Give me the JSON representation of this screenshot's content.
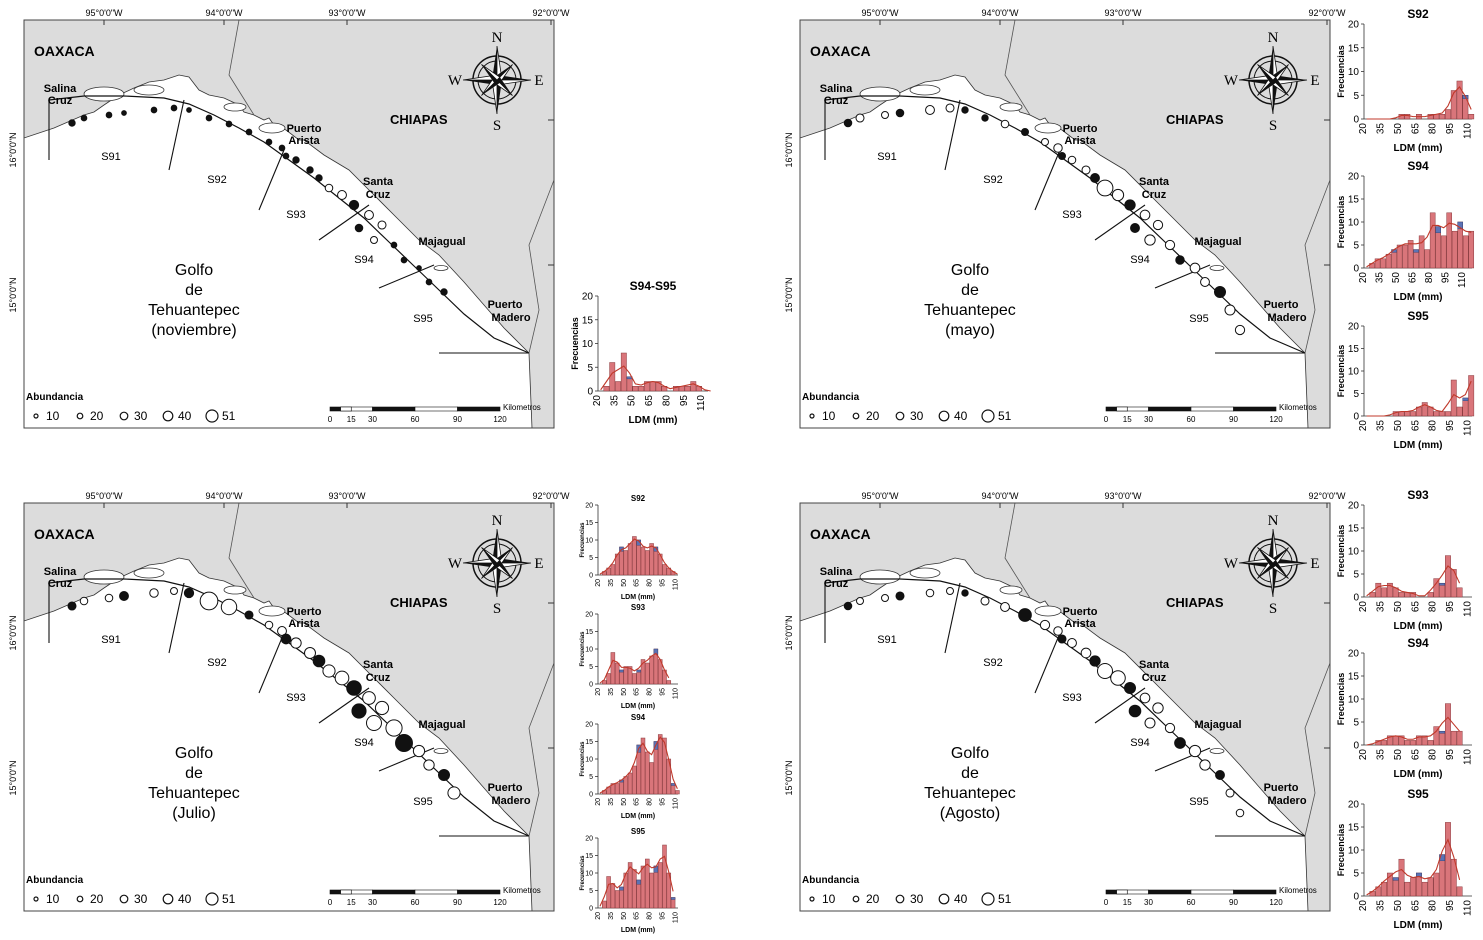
{
  "panels": [
    {
      "id": "nov",
      "axis": {
        "lon_labels": [
          "95°0'0\"W",
          "94°0'0\"W",
          "93°0'0\"W",
          "92°0'0\"W"
        ],
        "lat_labels": [
          "16°0'0\"N",
          "15°0'0\"N"
        ]
      },
      "places": {
        "oaxaca": "OAXACA",
        "chiapas": "CHIAPAS",
        "salina_1": "Salina",
        "salina_2": "Cruz",
        "arista_1": "Puerto",
        "arista_2": "Arista",
        "santa_1": "Santa",
        "santa_2": "Cruz",
        "majagual": "Majagual",
        "madero_1": "Puerto",
        "madero_2": "Madero"
      },
      "sectors": [
        "S91",
        "S92",
        "S93",
        "S94",
        "S95"
      ],
      "gulf": [
        "Golfo",
        "de",
        "Tehuantepec",
        "(noviembre)"
      ],
      "compass": {
        "n": "N",
        "s": "S",
        "e": "E",
        "w": "W"
      },
      "legend": {
        "title": "Abundancia",
        "values": [
          "10",
          "20",
          "30",
          "40",
          "51"
        ]
      },
      "scale": {
        "ticks": [
          "0",
          "15",
          "30",
          "60",
          "90",
          "120"
        ],
        "unit": "Kilometros"
      },
      "stations_abundance": [
        3,
        2,
        2,
        1,
        2,
        2,
        1,
        2,
        2,
        2,
        2,
        2,
        2,
        3,
        3,
        3,
        5,
        8,
        9,
        8,
        6,
        5,
        4,
        2,
        2,
        1,
        2,
        3
      ]
    },
    {
      "id": "may",
      "axis": {
        "lon_labels": [
          "95°0'0\"W",
          "94°0'0\"W",
          "93°0'0\"W",
          "92°0'0\"W"
        ],
        "lat_labels": [
          "16°0'0\"N",
          "15°0'0\"N"
        ]
      },
      "places": {
        "oaxaca": "OAXACA",
        "chiapas": "CHIAPAS",
        "salina_1": "Salina",
        "salina_2": "Cruz",
        "arista_1": "Puerto",
        "arista_2": "Arista",
        "santa_1": "Santa",
        "santa_2": "Cruz",
        "majagual": "Majagual",
        "madero_1": "Puerto",
        "madero_2": "Madero"
      },
      "sectors": [
        "S91",
        "S92",
        "S93",
        "S94",
        "S95"
      ],
      "gulf": [
        "Golfo",
        "de",
        "Tehuantepec",
        "(mayo)"
      ],
      "compass": {
        "n": "N",
        "s": "S",
        "e": "E",
        "w": "W"
      },
      "legend": {
        "title": "Abundancia",
        "values": [
          "10",
          "20",
          "30",
          "40",
          "51"
        ]
      },
      "scale": {
        "ticks": [
          "0",
          "15",
          "30",
          "60",
          "90",
          "120"
        ],
        "unit": "Kilometros"
      },
      "stations_abundance": [
        5,
        6,
        4,
        5,
        8,
        6,
        3,
        3,
        5,
        4,
        4,
        7,
        4,
        5,
        6,
        8,
        34,
        15,
        12,
        10,
        9,
        8,
        12,
        9,
        7,
        10,
        8,
        14,
        11,
        9
      ]
    },
    {
      "id": "jul",
      "axis": {
        "lon_labels": [
          "95°0'0\"W",
          "94°0'0\"W",
          "93°0'0\"W",
          "92°0'0\"W"
        ],
        "lat_labels": [
          "16°0'0\"N",
          "15°0'0\"N"
        ]
      },
      "places": {
        "oaxaca": "OAXACA",
        "chiapas": "CHIAPAS",
        "salina_1": "Salina",
        "salina_2": "Cruz",
        "arista_1": "Puerto",
        "arista_2": "Arista",
        "santa_1": "Santa",
        "santa_2": "Cruz",
        "majagual": "Majagual",
        "madero_1": "Puerto",
        "madero_2": "Madero"
      },
      "sectors": [
        "S91",
        "S92",
        "S93",
        "S94",
        "S95"
      ],
      "gulf": [
        "Golfo",
        "de",
        "Tehuantepec",
        "(Julio)"
      ],
      "compass": {
        "n": "N",
        "s": "S",
        "e": "E",
        "w": "W"
      },
      "legend": {
        "title": "Abundancia",
        "values": [
          "10",
          "20",
          "30",
          "40",
          "51"
        ]
      },
      "scale": {
        "ticks": [
          "0",
          "15",
          "30",
          "60",
          "90",
          "120"
        ],
        "unit": "Kilometros"
      },
      "stations_abundance": [
        6,
        5,
        5,
        8,
        7,
        4,
        9,
        44,
        32,
        6,
        5,
        8,
        10,
        12,
        14,
        16,
        18,
        24,
        28,
        20,
        22,
        26,
        30,
        36,
        40,
        15,
        12,
        14,
        18
      ]
    },
    {
      "id": "ago",
      "axis": {
        "lon_labels": [
          "95°0'0\"W",
          "94°0'0\"W",
          "93°0'0\"W",
          "92°0'0\"W"
        ],
        "lat_labels": [
          "16°0'0\"N",
          "15°0'0\"N"
        ]
      },
      "places": {
        "oaxaca": "OAXACA",
        "chiapas": "CHIAPAS",
        "salina_1": "Salina",
        "salina_2": "Cruz",
        "arista_1": "Puerto",
        "arista_2": "Arista",
        "santa_1": "Santa",
        "santa_2": "Cruz",
        "majagual": "Majagual",
        "madero_1": "Puerto",
        "madero_2": "Madero"
      },
      "sectors": [
        "S91",
        "S92",
        "S93",
        "S94",
        "S95"
      ],
      "gulf": [
        "Golfo",
        "de",
        "Tehuantepec",
        "(Agosto)"
      ],
      "compass": {
        "n": "N",
        "s": "S",
        "e": "E",
        "w": "W"
      },
      "legend": {
        "title": "Abundancia",
        "values": [
          "10",
          "20",
          "30",
          "40",
          "51"
        ]
      },
      "scale": {
        "ticks": [
          "0",
          "15",
          "30",
          "60",
          "90",
          "120"
        ],
        "unit": "Kilometros"
      },
      "stations_abundance": [
        5,
        4,
        4,
        6,
        5,
        4,
        3,
        6,
        8,
        20,
        9,
        7,
        6,
        8,
        10,
        12,
        30,
        28,
        14,
        10,
        12,
        16,
        11,
        9,
        13,
        15,
        12,
        8,
        6,
        5
      ]
    }
  ],
  "chart_data": [
    {
      "type": "bar",
      "panel": "nov",
      "title": "S94-S95",
      "xlabel": "LDM (mm)",
      "ylabel": "Frecuencias",
      "x": [
        20,
        25,
        30,
        35,
        40,
        45,
        50,
        55,
        60,
        65,
        70,
        75,
        80,
        85,
        90,
        95,
        100,
        105,
        110,
        115
      ],
      "series": [
        {
          "name": "observed",
          "values": [
            0,
            1,
            6,
            2,
            8,
            3,
            1,
            1,
            2,
            2,
            2,
            1,
            0,
            1,
            1,
            1,
            2,
            1,
            0,
            0
          ]
        }
      ],
      "yticks": [
        0,
        5,
        10,
        15,
        20
      ],
      "ylim": [
        0,
        20
      ],
      "xticks": [
        20,
        35,
        50,
        65,
        80,
        95,
        110
      ],
      "xlim": [
        20,
        115
      ]
    },
    {
      "type": "bar",
      "panel": "may",
      "title": "S92",
      "xlabel": "LDM (mm)",
      "ylabel": "Frecuencias",
      "x": [
        20,
        25,
        30,
        35,
        40,
        45,
        50,
        55,
        60,
        65,
        70,
        75,
        80,
        85,
        90,
        95,
        100,
        105,
        110
      ],
      "series": [
        {
          "name": "observed",
          "values": [
            0,
            0,
            0,
            0,
            0,
            0,
            1,
            1,
            0,
            1,
            0,
            1,
            1,
            1,
            2,
            6,
            8,
            5,
            1
          ]
        }
      ],
      "yticks": [
        0,
        5,
        10,
        15,
        20
      ],
      "ylim": [
        0,
        20
      ],
      "xticks": [
        20,
        35,
        50,
        65,
        80,
        95,
        110
      ],
      "xlim": [
        20,
        113
      ]
    },
    {
      "type": "bar",
      "panel": "may",
      "title": "S94",
      "xlabel": "LDM (mm)",
      "ylabel": "Frecuencias",
      "x": [
        20,
        25,
        30,
        35,
        40,
        45,
        50,
        55,
        60,
        65,
        70,
        75,
        80,
        85,
        90,
        95,
        100,
        105,
        110,
        115
      ],
      "series": [
        {
          "name": "observed",
          "values": [
            0,
            1,
            2,
            2,
            3,
            4,
            5,
            5,
            6,
            4,
            7,
            4,
            12,
            9,
            7,
            12,
            8,
            10,
            7,
            8
          ]
        }
      ],
      "yticks": [
        0,
        5,
        10,
        15,
        20
      ],
      "ylim": [
        0,
        20
      ],
      "xticks": [
        20,
        35,
        50,
        65,
        80,
        95,
        110
      ],
      "xlim": [
        20,
        118
      ]
    },
    {
      "type": "bar",
      "panel": "may",
      "title": "S95",
      "xlabel": "LDM (mm)",
      "ylabel": "Frecuencias",
      "x": [
        20,
        25,
        30,
        35,
        40,
        45,
        50,
        55,
        60,
        65,
        70,
        75,
        80,
        85,
        90,
        95,
        100,
        105,
        110
      ],
      "series": [
        {
          "name": "observed",
          "values": [
            0,
            0,
            0,
            0,
            0,
            1,
            1,
            1,
            1,
            2,
            3,
            2,
            1,
            1,
            1,
            8,
            2,
            4,
            9
          ]
        }
      ],
      "yticks": [
        0,
        5,
        10,
        15,
        20
      ],
      "ylim": [
        0,
        20
      ],
      "xticks": [
        20,
        35,
        50,
        65,
        80,
        95,
        110
      ],
      "xlim": [
        20,
        113
      ]
    },
    {
      "type": "bar",
      "panel": "jul",
      "title": "S92",
      "xlabel": "LDM (mm)",
      "ylabel": "Frecuencias",
      "x": [
        20,
        25,
        30,
        35,
        40,
        45,
        50,
        55,
        60,
        65,
        70,
        75,
        80,
        85,
        90,
        95,
        100,
        105,
        110
      ],
      "series": [
        {
          "name": "observed",
          "values": [
            0,
            1,
            2,
            3,
            6,
            8,
            7,
            9,
            11,
            10,
            8,
            7,
            9,
            8,
            6,
            3,
            2,
            1,
            0
          ]
        }
      ],
      "yticks": [
        0,
        5,
        10,
        15,
        20
      ],
      "ylim": [
        0,
        20
      ],
      "xticks": [
        20,
        35,
        50,
        65,
        80,
        95,
        110
      ],
      "xlim": [
        20,
        113
      ]
    },
    {
      "type": "bar",
      "panel": "jul",
      "title": "S93",
      "xlabel": "LDM (mm)",
      "ylabel": "Frecuencias",
      "x": [
        20,
        25,
        30,
        35,
        40,
        45,
        50,
        55,
        60,
        65,
        70,
        75,
        80,
        85,
        90,
        95,
        100
      ],
      "series": [
        {
          "name": "observed",
          "values": [
            0,
            1,
            3,
            9,
            6,
            4,
            5,
            5,
            3,
            4,
            7,
            6,
            8,
            10,
            7,
            4,
            1
          ]
        }
      ],
      "yticks": [
        0,
        5,
        10,
        15,
        20
      ],
      "ylim": [
        0,
        20
      ],
      "xticks": [
        20,
        35,
        50,
        65,
        80,
        95,
        110
      ],
      "xlim": [
        20,
        113
      ]
    },
    {
      "type": "bar",
      "panel": "jul",
      "title": "S94",
      "xlabel": "LDM (mm)",
      "ylabel": "Frecuencias",
      "x": [
        20,
        25,
        30,
        35,
        40,
        45,
        50,
        55,
        60,
        65,
        70,
        75,
        80,
        85,
        90,
        95,
        100,
        105,
        110
      ],
      "series": [
        {
          "name": "observed",
          "values": [
            0,
            1,
            2,
            3,
            3,
            4,
            5,
            6,
            8,
            14,
            16,
            12,
            9,
            15,
            17,
            16,
            10,
            3,
            1
          ]
        }
      ],
      "yticks": [
        0,
        5,
        10,
        15,
        20
      ],
      "ylim": [
        0,
        20
      ],
      "xticks": [
        20,
        35,
        50,
        65,
        80,
        95,
        110
      ],
      "xlim": [
        20,
        113
      ]
    },
    {
      "type": "bar",
      "panel": "jul",
      "title": "S95",
      "xlabel": "LDM (mm)",
      "ylabel": "Frecuencias",
      "x": [
        20,
        25,
        30,
        35,
        40,
        45,
        50,
        55,
        60,
        65,
        70,
        75,
        80,
        85,
        90,
        95,
        100,
        105
      ],
      "series": [
        {
          "name": "observed",
          "values": [
            0,
            2,
            9,
            7,
            5,
            6,
            10,
            13,
            11,
            8,
            12,
            14,
            10,
            12,
            13,
            18,
            10,
            3
          ]
        }
      ],
      "yticks": [
        0,
        5,
        10,
        15,
        20
      ],
      "ylim": [
        0,
        20
      ],
      "xticks": [
        20,
        35,
        50,
        65,
        80,
        95,
        110
      ],
      "xlim": [
        20,
        113
      ]
    },
    {
      "type": "bar",
      "panel": "ago",
      "title": "S93",
      "xlabel": "LDM (mm)",
      "ylabel": "Frecuencias",
      "x": [
        20,
        25,
        30,
        35,
        40,
        45,
        50,
        55,
        60,
        65,
        70,
        75,
        80,
        85,
        90,
        95,
        100
      ],
      "series": [
        {
          "name": "observed",
          "values": [
            0,
            1,
            3,
            2,
            3,
            2,
            1,
            1,
            1,
            0,
            0,
            1,
            4,
            3,
            9,
            6,
            2
          ]
        }
      ],
      "yticks": [
        0,
        5,
        10,
        15,
        20
      ],
      "ylim": [
        0,
        20
      ],
      "xticks": [
        20,
        35,
        50,
        65,
        80,
        95,
        110
      ],
      "xlim": [
        20,
        113
      ]
    },
    {
      "type": "bar",
      "panel": "ago",
      "title": "S94",
      "xlabel": "LDM (mm)",
      "ylabel": "Frecuencias",
      "x": [
        20,
        25,
        30,
        35,
        40,
        45,
        50,
        55,
        60,
        65,
        70,
        75,
        80,
        85,
        90,
        95,
        100
      ],
      "series": [
        {
          "name": "observed",
          "values": [
            0,
            0,
            1,
            1,
            2,
            2,
            2,
            1,
            1,
            2,
            2,
            1,
            4,
            3,
            9,
            3,
            3
          ]
        }
      ],
      "yticks": [
        0,
        5,
        10,
        15,
        20
      ],
      "ylim": [
        0,
        20
      ],
      "xticks": [
        20,
        35,
        50,
        65,
        80,
        95,
        110
      ],
      "xlim": [
        20,
        113
      ]
    },
    {
      "type": "bar",
      "panel": "ago",
      "title": "S95",
      "xlabel": "LDM (mm)",
      "ylabel": "Frecuencias",
      "x": [
        20,
        25,
        30,
        35,
        40,
        45,
        50,
        55,
        60,
        65,
        70,
        75,
        80,
        85,
        90,
        95,
        100
      ],
      "series": [
        {
          "name": "observed",
          "values": [
            0,
            1,
            2,
            3,
            5,
            4,
            8,
            3,
            4,
            5,
            3,
            4,
            5,
            9,
            16,
            8,
            2
          ]
        }
      ],
      "yticks": [
        0,
        5,
        10,
        15,
        20
      ],
      "ylim": [
        0,
        20
      ],
      "xticks": [
        20,
        35,
        50,
        65,
        80,
        95,
        110
      ],
      "xlim": [
        20,
        113
      ]
    }
  ]
}
